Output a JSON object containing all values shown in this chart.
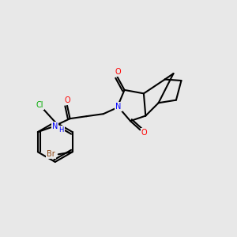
{
  "background_color": "#e8e8e8",
  "bond_color": "#000000",
  "title": "",
  "atoms": {
    "Br": {
      "color": "#8B4513",
      "label": "Br"
    },
    "Cl": {
      "color": "#00AA00",
      "label": "Cl"
    },
    "O_carbonyl1": {
      "color": "#FF0000",
      "label": "O"
    },
    "O_carbonyl2": {
      "color": "#FF0000",
      "label": "O"
    },
    "O_amide": {
      "color": "#FF0000",
      "label": "O"
    },
    "N_imide": {
      "color": "#0000FF",
      "label": "N"
    },
    "N_amide": {
      "color": "#0000FF",
      "label": "NH"
    }
  }
}
